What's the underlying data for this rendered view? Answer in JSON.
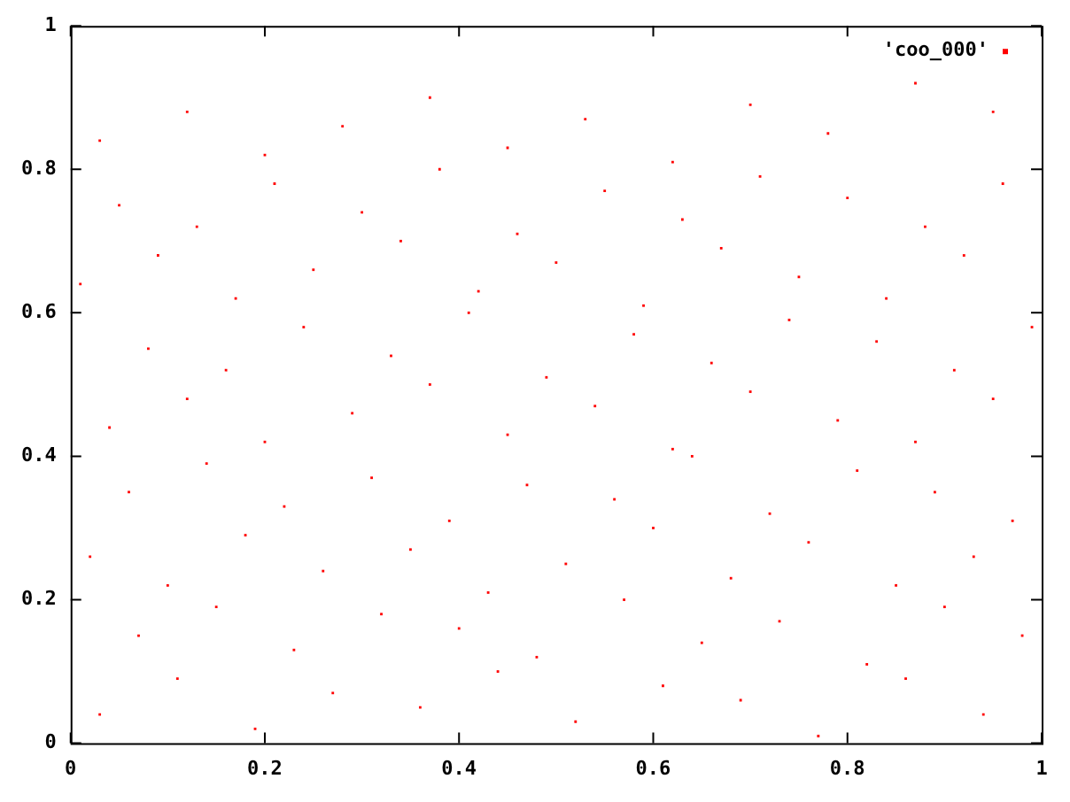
{
  "chart_data": {
    "type": "scatter",
    "legend": "top right",
    "marker": "square",
    "grid": false,
    "xlim": [
      0,
      1
    ],
    "ylim": [
      0,
      1
    ],
    "xticks": [
      0,
      0.2,
      0.4,
      0.6,
      0.8,
      1
    ],
    "yticks": [
      0,
      0.2,
      0.4,
      0.6,
      0.8,
      1
    ],
    "series": [
      {
        "name": "'coo_000'",
        "color": "#ff0000",
        "x": [
          0.03,
          0.11,
          0.19,
          0.27,
          0.36,
          0.44,
          0.52,
          0.61,
          0.69,
          0.77,
          0.86,
          0.94,
          0.07,
          0.15,
          0.23,
          0.32,
          0.4,
          0.48,
          0.57,
          0.65,
          0.73,
          0.82,
          0.9,
          0.98,
          0.02,
          0.1,
          0.18,
          0.26,
          0.35,
          0.43,
          0.51,
          0.6,
          0.68,
          0.76,
          0.85,
          0.93,
          0.06,
          0.14,
          0.22,
          0.31,
          0.39,
          0.47,
          0.56,
          0.64,
          0.72,
          0.81,
          0.89,
          0.97,
          0.04,
          0.12,
          0.2,
          0.29,
          0.37,
          0.45,
          0.54,
          0.62,
          0.7,
          0.79,
          0.87,
          0.95,
          0.08,
          0.16,
          0.24,
          0.33,
          0.41,
          0.49,
          0.58,
          0.66,
          0.74,
          0.83,
          0.91,
          0.99,
          0.01,
          0.09,
          0.17,
          0.25,
          0.34,
          0.42,
          0.5,
          0.59,
          0.67,
          0.75,
          0.84,
          0.92,
          0.05,
          0.13,
          0.21,
          0.3,
          0.38,
          0.46,
          0.55,
          0.63,
          0.71,
          0.8,
          0.88,
          0.96,
          0.03,
          0.12,
          0.2,
          0.28,
          0.37,
          0.45,
          0.53,
          0.62,
          0.7,
          0.78,
          0.87,
          0.95
        ],
        "values": [
          0.04,
          0.09,
          0.02,
          0.07,
          0.05,
          0.1,
          0.03,
          0.08,
          0.06,
          0.01,
          0.09,
          0.04,
          0.15,
          0.19,
          0.13,
          0.18,
          0.16,
          0.12,
          0.2,
          0.14,
          0.17,
          0.11,
          0.19,
          0.15,
          0.26,
          0.22,
          0.29,
          0.24,
          0.27,
          0.21,
          0.25,
          0.3,
          0.23,
          0.28,
          0.22,
          0.26,
          0.35,
          0.39,
          0.33,
          0.37,
          0.31,
          0.36,
          0.34,
          0.4,
          0.32,
          0.38,
          0.35,
          0.31,
          0.44,
          0.48,
          0.42,
          0.46,
          0.5,
          0.43,
          0.47,
          0.41,
          0.49,
          0.45,
          0.42,
          0.48,
          0.55,
          0.52,
          0.58,
          0.54,
          0.6,
          0.51,
          0.57,
          0.53,
          0.59,
          0.56,
          0.52,
          0.58,
          0.64,
          0.68,
          0.62,
          0.66,
          0.7,
          0.63,
          0.67,
          0.61,
          0.69,
          0.65,
          0.62,
          0.68,
          0.75,
          0.72,
          0.78,
          0.74,
          0.8,
          0.71,
          0.77,
          0.73,
          0.79,
          0.76,
          0.72,
          0.78,
          0.84,
          0.88,
          0.82,
          0.86,
          0.9,
          0.83,
          0.87,
          0.81,
          0.89,
          0.85,
          0.92,
          0.88
        ]
      }
    ]
  }
}
